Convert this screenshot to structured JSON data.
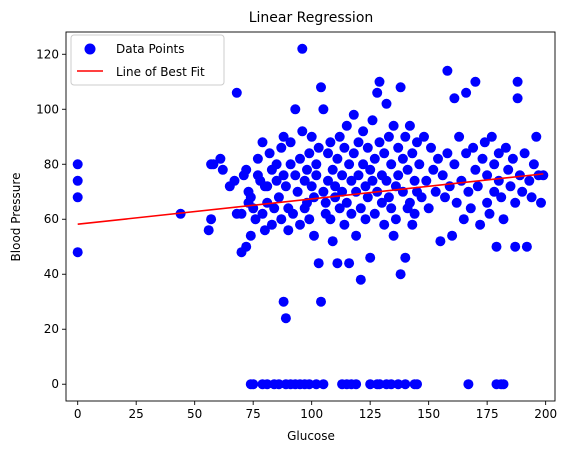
{
  "chart_data": {
    "type": "scatter",
    "title": "Linear Regression",
    "xlabel": "Glucose",
    "ylabel": "Blood Pressure",
    "xlim": [
      -5,
      204
    ],
    "ylim": [
      -6.1,
      128.1
    ],
    "xticks": [
      0,
      25,
      50,
      75,
      100,
      125,
      150,
      175,
      200
    ],
    "yticks": [
      0,
      20,
      40,
      60,
      80,
      100,
      120
    ],
    "grid": false,
    "legend": {
      "position": "top-left",
      "entries": [
        "Data Points",
        "Line of Best Fit"
      ]
    },
    "colors": {
      "points": "#0000ff",
      "line": "#ff0000"
    },
    "series": [
      {
        "name": "Data Points",
        "kind": "scatter",
        "points": [
          [
            0,
            80
          ],
          [
            0,
            74
          ],
          [
            0,
            68
          ],
          [
            0,
            48
          ],
          [
            44,
            62
          ],
          [
            56,
            56
          ],
          [
            57,
            60
          ],
          [
            57,
            80
          ],
          [
            58,
            80
          ],
          [
            61,
            82
          ],
          [
            62,
            78
          ],
          [
            65,
            72
          ],
          [
            67,
            74
          ],
          [
            68,
            106
          ],
          [
            68,
            62
          ],
          [
            70,
            62
          ],
          [
            70,
            48
          ],
          [
            71,
            76
          ],
          [
            72,
            78
          ],
          [
            72,
            50
          ],
          [
            73,
            70
          ],
          [
            73,
            66
          ],
          [
            74,
            68
          ],
          [
            74,
            54
          ],
          [
            75,
            64
          ],
          [
            76,
            60
          ],
          [
            77,
            82
          ],
          [
            77,
            76
          ],
          [
            78,
            74
          ],
          [
            79,
            88
          ],
          [
            79,
            62
          ],
          [
            80,
            72
          ],
          [
            80,
            56
          ],
          [
            81,
            72
          ],
          [
            81,
            66
          ],
          [
            82,
            84
          ],
          [
            83,
            78
          ],
          [
            83,
            58
          ],
          [
            84,
            64
          ],
          [
            85,
            80
          ],
          [
            85,
            74
          ],
          [
            86,
            68
          ],
          [
            87,
            86
          ],
          [
            87,
            60
          ],
          [
            88,
            90
          ],
          [
            88,
            76
          ],
          [
            88,
            30
          ],
          [
            89,
            72
          ],
          [
            89,
            24
          ],
          [
            90,
            64
          ],
          [
            90,
            56
          ],
          [
            91,
            88
          ],
          [
            91,
            80
          ],
          [
            92,
            62
          ],
          [
            93,
            100
          ],
          [
            93,
            76
          ],
          [
            94,
            70
          ],
          [
            95,
            82
          ],
          [
            95,
            58
          ],
          [
            96,
            122
          ],
          [
            96,
            92
          ],
          [
            97,
            74
          ],
          [
            97,
            64
          ],
          [
            98,
            78
          ],
          [
            98,
            66
          ],
          [
            99,
            84
          ],
          [
            99,
            60
          ],
          [
            100,
            90
          ],
          [
            100,
            72
          ],
          [
            101,
            68
          ],
          [
            101,
            54
          ],
          [
            102,
            80
          ],
          [
            102,
            76
          ],
          [
            103,
            86
          ],
          [
            103,
            44
          ],
          [
            104,
            108
          ],
          [
            104,
            30
          ],
          [
            105,
            100
          ],
          [
            105,
            70
          ],
          [
            106,
            66
          ],
          [
            106,
            62
          ],
          [
            107,
            84
          ],
          [
            107,
            74
          ],
          [
            108,
            88
          ],
          [
            108,
            60
          ],
          [
            109,
            78
          ],
          [
            109,
            52
          ],
          [
            110,
            72
          ],
          [
            110,
            68
          ],
          [
            111,
            82
          ],
          [
            111,
            44
          ],
          [
            112,
            90
          ],
          [
            112,
            64
          ],
          [
            113,
            76
          ],
          [
            113,
            70
          ],
          [
            114,
            86
          ],
          [
            114,
            58
          ],
          [
            115,
            94
          ],
          [
            115,
            66
          ],
          [
            116,
            80
          ],
          [
            116,
            44
          ],
          [
            117,
            74
          ],
          [
            117,
            62
          ],
          [
            118,
            98
          ],
          [
            118,
            84
          ],
          [
            119,
            70
          ],
          [
            119,
            54
          ],
          [
            120,
            88
          ],
          [
            120,
            76
          ],
          [
            121,
            64
          ],
          [
            121,
            38
          ],
          [
            122,
            92
          ],
          [
            122,
            80
          ],
          [
            123,
            72
          ],
          [
            123,
            60
          ],
          [
            124,
            86
          ],
          [
            124,
            68
          ],
          [
            125,
            78
          ],
          [
            125,
            46
          ],
          [
            126,
            96
          ],
          [
            126,
            74
          ],
          [
            127,
            82
          ],
          [
            127,
            62
          ],
          [
            128,
            106
          ],
          [
            128,
            70
          ],
          [
            129,
            110
          ],
          [
            129,
            88
          ],
          [
            130,
            76
          ],
          [
            130,
            66
          ],
          [
            131,
            84
          ],
          [
            131,
            58
          ],
          [
            132,
            102
          ],
          [
            132,
            74
          ],
          [
            133,
            90
          ],
          [
            133,
            68
          ],
          [
            134,
            80
          ],
          [
            134,
            64
          ],
          [
            135,
            94
          ],
          [
            135,
            54
          ],
          [
            136,
            72
          ],
          [
            136,
            60
          ],
          [
            137,
            86
          ],
          [
            137,
            76
          ],
          [
            138,
            108
          ],
          [
            138,
            40
          ],
          [
            139,
            82
          ],
          [
            139,
            70
          ],
          [
            140,
            90
          ],
          [
            140,
            46
          ],
          [
            141,
            78
          ],
          [
            141,
            64
          ],
          [
            142,
            94
          ],
          [
            142,
            66
          ],
          [
            143,
            84
          ],
          [
            143,
            58
          ],
          [
            144,
            74
          ],
          [
            144,
            62
          ],
          [
            145,
            88
          ],
          [
            145,
            70
          ],
          [
            146,
            80
          ],
          [
            147,
            68
          ],
          [
            148,
            90
          ],
          [
            149,
            74
          ],
          [
            150,
            64
          ],
          [
            151,
            86
          ],
          [
            152,
            78
          ],
          [
            153,
            70
          ],
          [
            154,
            82
          ],
          [
            155,
            52
          ],
          [
            156,
            76
          ],
          [
            157,
            68
          ],
          [
            158,
            114
          ],
          [
            158,
            84
          ],
          [
            159,
            72
          ],
          [
            160,
            54
          ],
          [
            161,
            104
          ],
          [
            161,
            80
          ],
          [
            162,
            66
          ],
          [
            163,
            90
          ],
          [
            164,
            74
          ],
          [
            165,
            60
          ],
          [
            166,
            106
          ],
          [
            166,
            84
          ],
          [
            167,
            70
          ],
          [
            168,
            64
          ],
          [
            169,
            86
          ],
          [
            170,
            110
          ],
          [
            170,
            78
          ],
          [
            171,
            72
          ],
          [
            172,
            58
          ],
          [
            173,
            82
          ],
          [
            174,
            88
          ],
          [
            175,
            76
          ],
          [
            175,
            66
          ],
          [
            176,
            62
          ],
          [
            177,
            90
          ],
          [
            178,
            80
          ],
          [
            178,
            70
          ],
          [
            179,
            50
          ],
          [
            180,
            84
          ],
          [
            180,
            74
          ],
          [
            181,
            68
          ],
          [
            182,
            60
          ],
          [
            183,
            86
          ],
          [
            184,
            78
          ],
          [
            185,
            72
          ],
          [
            186,
            82
          ],
          [
            187,
            50
          ],
          [
            187,
            66
          ],
          [
            188,
            110
          ],
          [
            188,
            104
          ],
          [
            189,
            76
          ],
          [
            190,
            70
          ],
          [
            191,
            84
          ],
          [
            192,
            50
          ],
          [
            193,
            74
          ],
          [
            194,
            68
          ],
          [
            195,
            80
          ],
          [
            196,
            90
          ],
          [
            197,
            76
          ],
          [
            198,
            66
          ],
          [
            199,
            76
          ],
          [
            74,
            0
          ],
          [
            75,
            0
          ],
          [
            79,
            0
          ],
          [
            81,
            0
          ],
          [
            84,
            0
          ],
          [
            86,
            0
          ],
          [
            89,
            0
          ],
          [
            91,
            0
          ],
          [
            93,
            0
          ],
          [
            95,
            0
          ],
          [
            97,
            0
          ],
          [
            99,
            0
          ],
          [
            102,
            0
          ],
          [
            105,
            0
          ],
          [
            113,
            0
          ],
          [
            115,
            0
          ],
          [
            117,
            0
          ],
          [
            119,
            0
          ],
          [
            125,
            0
          ],
          [
            128,
            0
          ],
          [
            129,
            0
          ],
          [
            132,
            0
          ],
          [
            134,
            0
          ],
          [
            137,
            0
          ],
          [
            140,
            0
          ],
          [
            144,
            0
          ],
          [
            145,
            0
          ],
          [
            167,
            0
          ],
          [
            179,
            0
          ],
          [
            181,
            0
          ],
          [
            182,
            0
          ]
        ]
      },
      {
        "name": "Line of Best Fit",
        "kind": "line",
        "points": [
          [
            0,
            58.2
          ],
          [
            199,
            76.5
          ]
        ]
      }
    ]
  }
}
